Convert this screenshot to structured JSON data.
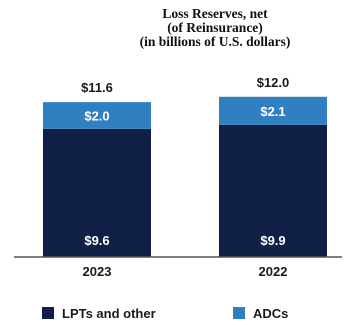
{
  "chart_data": {
    "type": "bar",
    "stacked": true,
    "title_lines": [
      "Loss Reserves, net",
      "(of Reinsurance)",
      "(in billions of U.S. dollars)"
    ],
    "categories": [
      "2023",
      "2022"
    ],
    "series": [
      {
        "name": "LPTs and other",
        "values": [
          9.6,
          9.9
        ],
        "labels": [
          "$9.6",
          "$9.9"
        ],
        "color": "#0f1f45"
      },
      {
        "name": "ADCs",
        "values": [
          2.0,
          2.1
        ],
        "labels": [
          "$2.0",
          "$2.1"
        ],
        "color": "#2f7fc1"
      }
    ],
    "totals": [
      11.6,
      12.0
    ],
    "total_labels": [
      "$11.6",
      "$12.0"
    ],
    "legend_position": "bottom",
    "grid": false
  }
}
